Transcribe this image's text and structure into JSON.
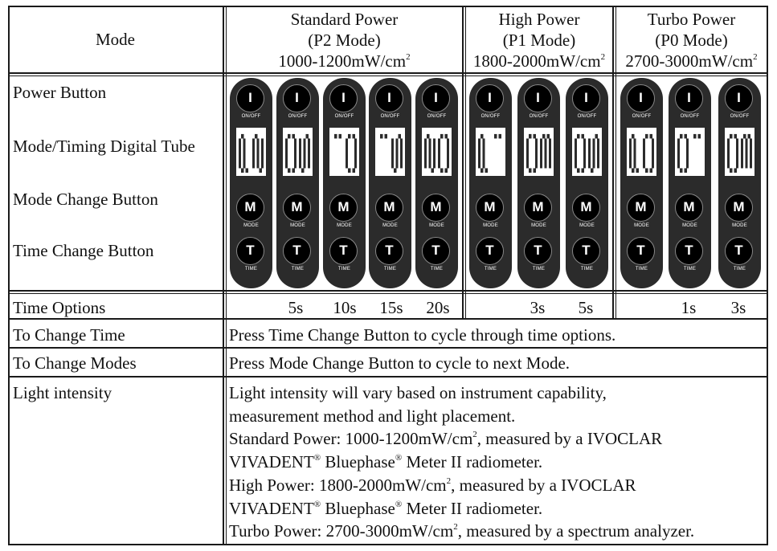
{
  "header": {
    "mode_label": "Mode",
    "standard": {
      "name": "Standard Power",
      "code": "(P2 Mode)",
      "range": "1000-1200mW/cm",
      "sup": "2"
    },
    "high": {
      "name": "High Power",
      "code": "(P1 Mode)",
      "range": "1800-2000mW/cm",
      "sup": "2"
    },
    "turbo": {
      "name": "Turbo Power",
      "code": "(P0 Mode)",
      "range": "2700-3000mW/cm",
      "sup": "2"
    }
  },
  "rows": {
    "power_button": "Power Button",
    "digital_tube": "Mode/Timing Digital Tube",
    "mode_button": "Mode Change Button",
    "time_button": "Time Change Button",
    "time_options": "Time Options",
    "change_time": "To Change Time",
    "change_modes": "To Change Modes",
    "light_intensity": "Light intensity"
  },
  "remote_labels": {
    "power_glyph": "I",
    "power_caption": "ON/OFF",
    "mode_glyph": "M",
    "mode_caption": "MODE",
    "time_glyph": "T",
    "time_caption": "TIME"
  },
  "displays": [
    "P2",
    "05",
    "10",
    "15",
    "20",
    "P1",
    "03",
    "05",
    "P0",
    "01",
    "03"
  ],
  "time_options": {
    "standard": [
      "5s",
      "10s",
      "15s",
      "20s"
    ],
    "high": [
      "3s",
      "5s"
    ],
    "turbo": [
      "1s",
      "3s"
    ]
  },
  "instructions": {
    "change_time": "Press Time Change Button to cycle through time options.",
    "change_modes": "Press Mode Change Button to cycle to next Mode."
  },
  "light": {
    "line1": "Light intensity will vary based on instrument capability,",
    "line2": "measurement method and light placement.",
    "line3a": "Standard Power: 1000-1200mW/cm",
    "line3b": ", measured by a IVOCLAR",
    "line4a": "VIVADENT",
    "line4b": " Bluephase",
    "line4c": " Meter II radiometer.",
    "line5a": "High Power: 1800-2000mW/cm",
    "line5b": ", measured by a IVOCLAR",
    "line6a": "VIVADENT",
    "line6b": " Bluephase",
    "line6c": " Meter II radiometer.",
    "line7a": "Turbo Power: 2700-3000mW/cm",
    "line7b": ", measured by a spectrum analyzer.",
    "sup2": "2",
    "reg": "®"
  }
}
